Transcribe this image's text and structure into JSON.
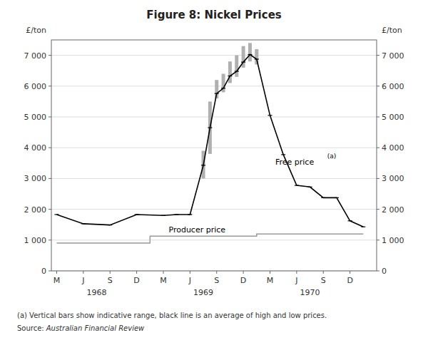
{
  "chart_data": {
    "type": "line",
    "title": "Figure 8: Nickel Prices",
    "ylabel": "£/ton",
    "y2label": "£/ton",
    "note": "(a) Vertical bars show indicative range, black line is an average of high and low prices.",
    "source_prefix": "Source: ",
    "source": "Australian Financial Review",
    "xlim": [
      -0.2,
      12
    ],
    "xticks": [
      {
        "value": 0,
        "label": "M"
      },
      {
        "value": 1,
        "label": "J"
      },
      {
        "value": 2,
        "label": "S"
      },
      {
        "value": 3,
        "label": "D"
      },
      {
        "value": 4,
        "label": "M"
      },
      {
        "value": 5,
        "label": "J"
      },
      {
        "value": 6,
        "label": "S"
      },
      {
        "value": 7,
        "label": "D"
      },
      {
        "value": 8,
        "label": "M"
      },
      {
        "value": 9,
        "label": "J"
      },
      {
        "value": 10,
        "label": "S"
      },
      {
        "value": 11,
        "label": "D"
      }
    ],
    "x_year_labels": [
      {
        "value": 1.5,
        "label": "1968"
      },
      {
        "value": 5.5,
        "label": "1969"
      },
      {
        "value": 9.5,
        "label": "1970"
      }
    ],
    "ylim": [
      0,
      7500
    ],
    "yticks": [
      0,
      {
        "value": 1000,
        "label": "1 000"
      },
      {
        "value": 2000,
        "label": "2 000"
      },
      {
        "value": 3000,
        "label": "3 000"
      },
      {
        "value": 4000,
        "label": "4 000"
      },
      {
        "value": 5000,
        "label": "5 000"
      },
      {
        "value": 6000,
        "label": "6 000"
      },
      {
        "value": 7000,
        "label": "7 000"
      }
    ],
    "y2lim": [
      0,
      7500
    ],
    "y2ticks": [
      0,
      {
        "value": 1000,
        "label": "1 000"
      },
      {
        "value": 2000,
        "label": "2 000"
      },
      {
        "value": 3000,
        "label": "3 000"
      },
      {
        "value": 4000,
        "label": "4 000"
      },
      {
        "value": 5000,
        "label": "5 000"
      },
      {
        "value": 6000,
        "label": "6 000"
      },
      {
        "value": 7000,
        "label": "7 000"
      }
    ],
    "grid": true,
    "x": [
      0,
      1,
      2,
      3,
      4,
      4.5,
      5,
      5.5,
      5.75,
      6,
      6.25,
      6.5,
      6.75,
      7,
      7.25,
      7.5,
      8,
      8.5,
      9,
      9.5,
      10,
      10.5,
      11,
      11.5
    ],
    "series": [
      {
        "color": "#000000",
        "marker": "hline",
        "values": [
          1830,
          1530,
          1490,
          1830,
          1800,
          1830,
          1830,
          3430,
          4650,
          5760,
          5930,
          6330,
          6480,
          6780,
          7025,
          6875,
          5050,
          3775,
          2775,
          2725,
          2375,
          2375,
          1625,
          1430
        ]
      },
      {
        "color": "#999999",
        "x": [
          0,
          3.5,
          3.5,
          3.5,
          3.5,
          7.5,
          7.5,
          7.5,
          7.5,
          11.5
        ],
        "values": [
          900,
          900,
          900,
          1130,
          1130,
          1130,
          1130,
          1200,
          1200,
          1200
        ]
      }
    ],
    "range_bars": {
      "color": "#b0b0b0",
      "x": [
        5.0,
        5.5,
        5.75,
        6.0,
        6.25,
        6.5,
        6.75,
        7.0,
        7.25,
        7.5
      ],
      "low": [
        1810,
        3000,
        3800,
        5600,
        5800,
        6100,
        6300,
        6600,
        6800,
        6700
      ],
      "high": [
        1850,
        3900,
        5500,
        6200,
        6400,
        6800,
        7000,
        7300,
        7400,
        7200
      ]
    },
    "annotations": [
      {
        "text": "Free price",
        "x": 8.2,
        "y": 3550
      },
      {
        "text": "(a)",
        "x": 10.15,
        "y": 3750
      },
      {
        "text": "Producer price",
        "x": 4.2,
        "y": 1350
      }
    ]
  }
}
